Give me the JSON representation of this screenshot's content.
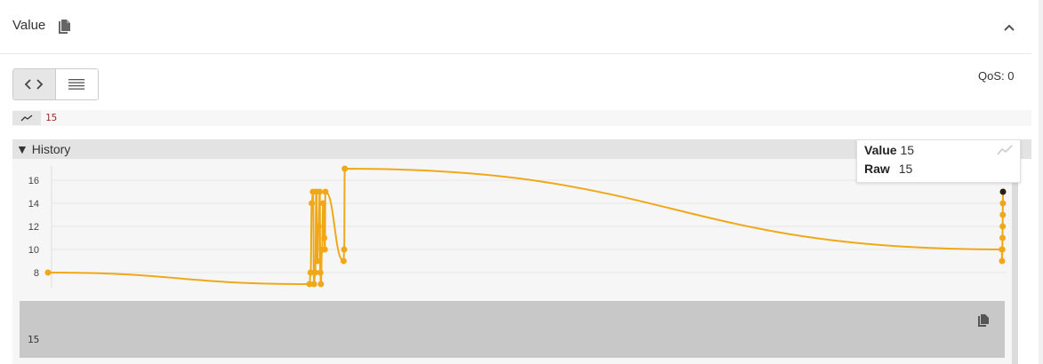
{
  "panel": {
    "title": "Value",
    "qos": "QoS: 0"
  },
  "icons": {
    "copy": "copy-icon",
    "collapse": "chevron-up-icon",
    "code": "code-icon",
    "list": "list-icon",
    "sparkline": "sparkline-icon",
    "chart": "chart-line-icon"
  },
  "current_value": "15",
  "history": {
    "label": "History"
  },
  "tooltip": {
    "value_label": "Value",
    "value": "15",
    "raw_label": "Raw",
    "raw": "15"
  },
  "raw_value": "15",
  "colors": {
    "series": "#f0a818",
    "latest_point": "#2a1f0a",
    "accent_text": "#9c2f2f"
  },
  "chart_data": {
    "type": "line",
    "y_ticks": [
      "8",
      "10",
      "12",
      "14",
      "16"
    ],
    "ylim": [
      7,
      17
    ],
    "grid": true,
    "series": [
      {
        "x": 0,
        "y": 8
      },
      {
        "x": 23,
        "y": 7
      },
      {
        "x": 23.1,
        "y": 8
      },
      {
        "x": 23.2,
        "y": 14
      },
      {
        "x": 23.3,
        "y": 15
      },
      {
        "x": 23.4,
        "y": 7
      },
      {
        "x": 23.5,
        "y": 8
      },
      {
        "x": 23.6,
        "y": 15
      },
      {
        "x": 23.7,
        "y": 9
      },
      {
        "x": 23.8,
        "y": 12
      },
      {
        "x": 23.9,
        "y": 15
      },
      {
        "x": 23.95,
        "y": 8
      },
      {
        "x": 24.0,
        "y": 7
      },
      {
        "x": 24.1,
        "y": 10
      },
      {
        "x": 24.2,
        "y": 14
      },
      {
        "x": 24.3,
        "y": 11
      },
      {
        "x": 24.35,
        "y": 10
      },
      {
        "x": 24.4,
        "y": 15
      },
      {
        "x": 26.0,
        "y": 9
      },
      {
        "x": 26.05,
        "y": 10
      },
      {
        "x": 26.1,
        "y": 17
      },
      {
        "x": 83.9,
        "y": 10
      },
      {
        "x": 83.92,
        "y": 9
      },
      {
        "x": 83.94,
        "y": 10
      },
      {
        "x": 83.96,
        "y": 11
      },
      {
        "x": 83.97,
        "y": 12
      },
      {
        "x": 83.98,
        "y": 13
      },
      {
        "x": 83.99,
        "y": 14
      },
      {
        "x": 84,
        "y": 15
      }
    ]
  }
}
